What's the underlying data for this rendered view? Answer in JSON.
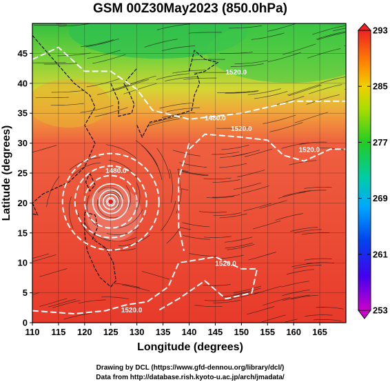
{
  "chart_data": {
    "type": "heatmap",
    "title": "GSM 00Z30May2023 (850.0hPa)",
    "xlabel": "Longitude (degrees)",
    "ylabel": "Latitude  (degrees)",
    "xlim": [
      110,
      170
    ],
    "ylim": [
      0,
      50
    ],
    "x_ticks": [
      110,
      115,
      120,
      125,
      130,
      135,
      140,
      145,
      150,
      155,
      160,
      165
    ],
    "y_ticks": [
      0,
      5,
      10,
      15,
      20,
      25,
      30,
      35,
      40,
      45
    ],
    "grid": true,
    "colorbar": {
      "ticks": [
        253,
        261,
        269,
        277,
        285,
        293
      ],
      "range": [
        253,
        293
      ],
      "colors": [
        "#cc00cc",
        "#0000dd",
        "#00a0ff",
        "#00ccaa",
        "#22cc22",
        "#aadd00",
        "#f0d000",
        "#ff8800",
        "#ee2222"
      ]
    },
    "contour_labels": [
      {
        "text": "1480.0",
        "lon": 126,
        "lat": 25
      },
      {
        "text": "1480.0",
        "lon": 145,
        "lat": 33.8
      },
      {
        "text": "1520.0",
        "lon": 150,
        "lat": 32
      },
      {
        "text": "1520.0",
        "lon": 163,
        "lat": 28.5
      },
      {
        "text": "1520.0",
        "lon": 147,
        "lat": 9.5
      },
      {
        "text": "1520.0",
        "lon": 129,
        "lat": 1.7
      },
      {
        "text": "1520.0",
        "lon": 149,
        "lat": 41.5
      }
    ],
    "typhoon_center": {
      "lon": 125,
      "lat": 20.2
    }
  },
  "credits": [
    "Drawing by DCL (https://www.gfd-dennou.org/library/dcl/)",
    "Data from http://database.rish.kyoto-u.ac.jp/arch/jmadata/"
  ]
}
